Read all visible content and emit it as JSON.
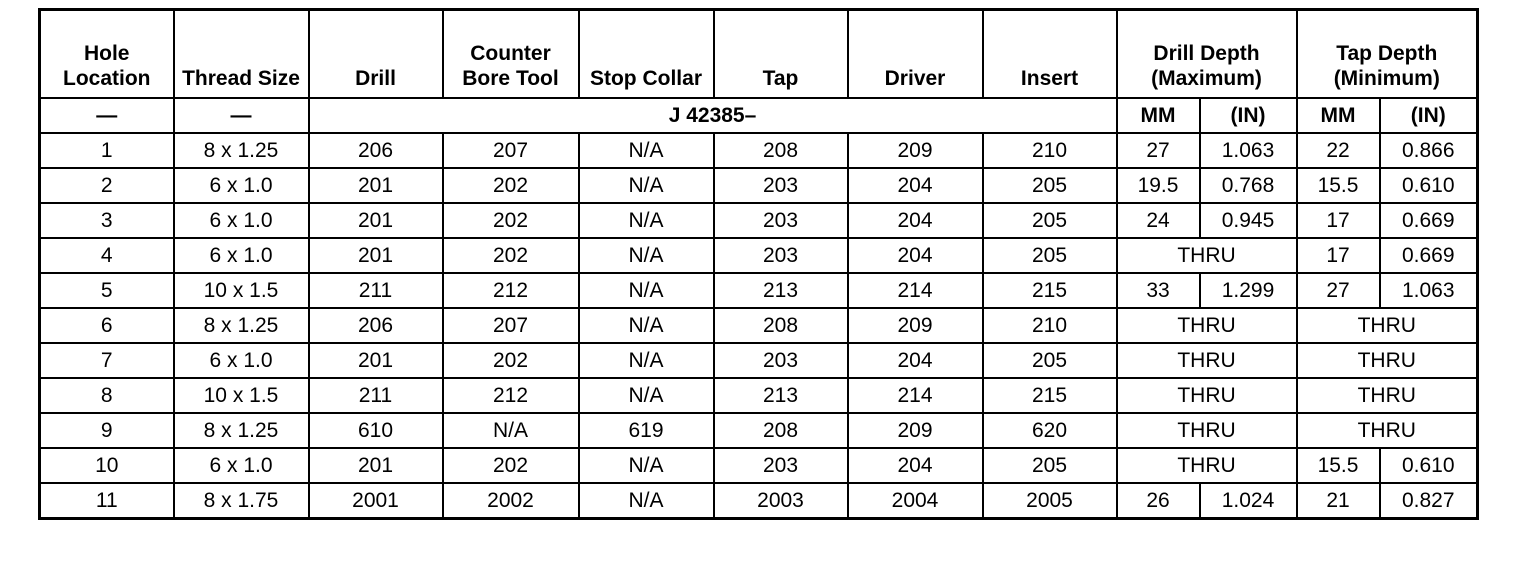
{
  "headers": [
    "Hole Location",
    "Thread Size",
    "Drill",
    "Counter Bore Tool",
    "Stop Collar",
    "Tap",
    "Driver",
    "Insert",
    "Drill Depth (Maximum)",
    "Tap Depth (Minimum)"
  ],
  "subheader": {
    "hole": "—",
    "thread": "—",
    "tool_prefix": "J 42385–",
    "units": [
      "MM",
      "(IN)",
      "MM",
      "(IN)"
    ]
  },
  "rows": [
    {
      "hole": "1",
      "thread": "8 x 1.25",
      "drill": "206",
      "cbore": "207",
      "collar": "N/A",
      "tap": "208",
      "driver": "209",
      "insert": "210",
      "dd": [
        "27",
        "1.063"
      ],
      "td": [
        "22",
        "0.866"
      ]
    },
    {
      "hole": "2",
      "thread": "6 x 1.0",
      "drill": "201",
      "cbore": "202",
      "collar": "N/A",
      "tap": "203",
      "driver": "204",
      "insert": "205",
      "dd": [
        "19.5",
        "0.768"
      ],
      "td": [
        "15.5",
        "0.610"
      ]
    },
    {
      "hole": "3",
      "thread": "6 x 1.0",
      "drill": "201",
      "cbore": "202",
      "collar": "N/A",
      "tap": "203",
      "driver": "204",
      "insert": "205",
      "dd": [
        "24",
        "0.945"
      ],
      "td": [
        "17",
        "0.669"
      ]
    },
    {
      "hole": "4",
      "thread": "6 x 1.0",
      "drill": "201",
      "cbore": "202",
      "collar": "N/A",
      "tap": "203",
      "driver": "204",
      "insert": "205",
      "dd": [
        "THRU"
      ],
      "td": [
        "17",
        "0.669"
      ]
    },
    {
      "hole": "5",
      "thread": "10 x 1.5",
      "drill": "211",
      "cbore": "212",
      "collar": "N/A",
      "tap": "213",
      "driver": "214",
      "insert": "215",
      "dd": [
        "33",
        "1.299"
      ],
      "td": [
        "27",
        "1.063"
      ]
    },
    {
      "hole": "6",
      "thread": "8 x 1.25",
      "drill": "206",
      "cbore": "207",
      "collar": "N/A",
      "tap": "208",
      "driver": "209",
      "insert": "210",
      "dd": [
        "THRU"
      ],
      "td": [
        "THRU"
      ]
    },
    {
      "hole": "7",
      "thread": "6 x 1.0",
      "drill": "201",
      "cbore": "202",
      "collar": "N/A",
      "tap": "203",
      "driver": "204",
      "insert": "205",
      "dd": [
        "THRU"
      ],
      "td": [
        "THRU"
      ]
    },
    {
      "hole": "8",
      "thread": "10 x 1.5",
      "drill": "211",
      "cbore": "212",
      "collar": "N/A",
      "tap": "213",
      "driver": "214",
      "insert": "215",
      "dd": [
        "THRU"
      ],
      "td": [
        "THRU"
      ]
    },
    {
      "hole": "9",
      "thread": "8 x 1.25",
      "drill": "610",
      "cbore": "N/A",
      "collar": "619",
      "tap": "208",
      "driver": "209",
      "insert": "620",
      "dd": [
        "THRU"
      ],
      "td": [
        "THRU"
      ]
    },
    {
      "hole": "10",
      "thread": "6 x 1.0",
      "drill": "201",
      "cbore": "202",
      "collar": "N/A",
      "tap": "203",
      "driver": "204",
      "insert": "205",
      "dd": [
        "THRU"
      ],
      "td": [
        "15.5",
        "0.610"
      ]
    },
    {
      "hole": "11",
      "thread": "8 x 1.75",
      "drill": "2001",
      "cbore": "2002",
      "collar": "N/A",
      "tap": "2003",
      "driver": "2004",
      "insert": "2005",
      "dd": [
        "26",
        "1.024"
      ],
      "td": [
        "21",
        "0.827"
      ]
    }
  ]
}
